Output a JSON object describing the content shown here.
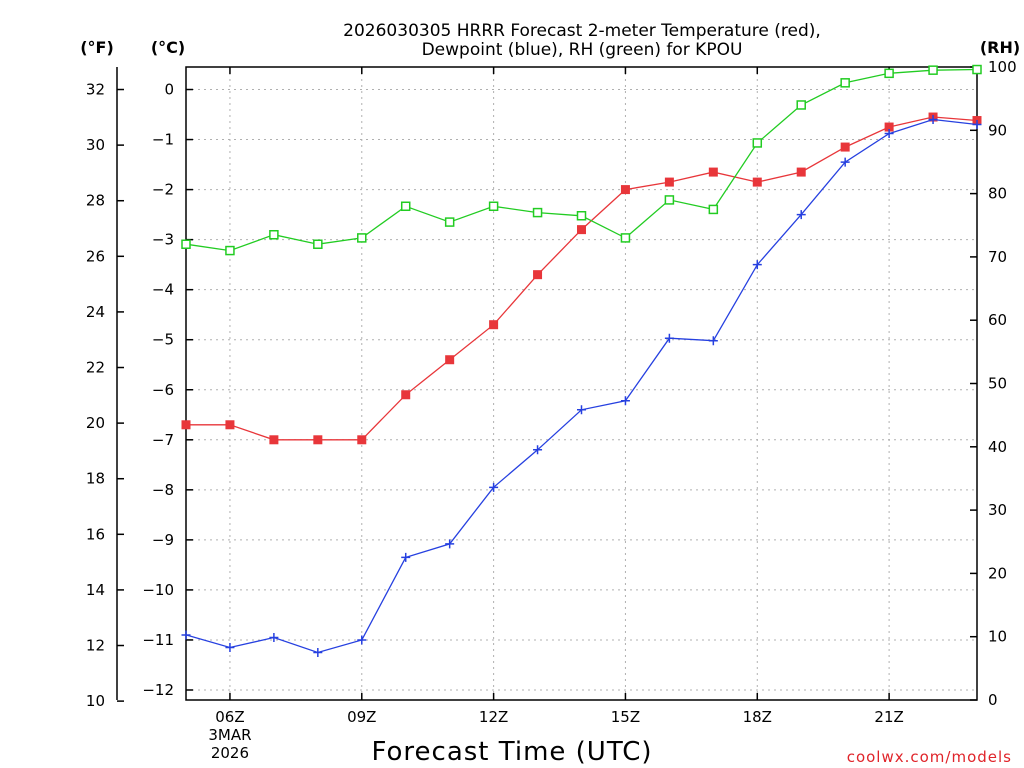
{
  "chart_data": {
    "type": "line",
    "title_lines": [
      "2026030305 HRRR Forecast 2-meter Temperature (red),",
      "Dewpoint (blue), RH (green) for KPOU"
    ],
    "xlabel": "Forecast Time (UTC)",
    "credit": "coolwx.com/models",
    "units": {
      "left_outer": "(°F)",
      "left_inner": "(°C)",
      "right": "(RH)"
    },
    "x_range": [
      5,
      23
    ],
    "x_ticks": [
      {
        "hour": 6,
        "label": "06Z",
        "sub": [
          "3MAR",
          "2026"
        ]
      },
      {
        "hour": 9,
        "label": "09Z",
        "sub": []
      },
      {
        "hour": 12,
        "label": "12Z",
        "sub": []
      },
      {
        "hour": 15,
        "label": "15Z",
        "sub": []
      },
      {
        "hour": 18,
        "label": "18Z",
        "sub": []
      },
      {
        "hour": 21,
        "label": "21Z",
        "sub": []
      }
    ],
    "y_celsius": {
      "range": [
        -12.2,
        0.45
      ],
      "ticks": [
        0,
        -1,
        -2,
        -3,
        -4,
        -5,
        -6,
        -7,
        -8,
        -9,
        -10,
        -11,
        -12
      ]
    },
    "y_fahrenheit": {
      "ticks": [
        32,
        30,
        28,
        26,
        24,
        22,
        20,
        18,
        16,
        14,
        12,
        10
      ]
    },
    "y_rh": {
      "range": [
        0,
        100
      ],
      "ticks": [
        100,
        90,
        80,
        70,
        60,
        50,
        40,
        30,
        20,
        10,
        0
      ]
    },
    "x": [
      5,
      6,
      7,
      8,
      9,
      10,
      11,
      12,
      13,
      14,
      15,
      16,
      17,
      18,
      19,
      20,
      21,
      22,
      23
    ],
    "series": [
      {
        "name": "Temperature",
        "axis": "celsius",
        "color": "#e8363a",
        "marker": "filled-square",
        "values": [
          -6.7,
          -6.7,
          -7.0,
          -7.0,
          -7.0,
          -6.1,
          -5.4,
          -4.7,
          -3.7,
          -2.8,
          -2.0,
          -1.85,
          -1.65,
          -1.85,
          -1.65,
          -1.15,
          -0.75,
          -0.55,
          -0.62
        ]
      },
      {
        "name": "Dewpoint",
        "axis": "celsius",
        "color": "#2640e0",
        "marker": "plus",
        "values": [
          -10.9,
          -11.15,
          -10.95,
          -11.25,
          -11.0,
          -9.35,
          -9.08,
          -7.95,
          -7.2,
          -6.4,
          -6.22,
          -4.97,
          -5.02,
          -3.5,
          -2.5,
          -1.45,
          -0.88,
          -0.6,
          -0.7
        ]
      },
      {
        "name": "RH",
        "axis": "rh",
        "color": "#22cc22",
        "marker": "open-square",
        "values": [
          72,
          71,
          73.5,
          72,
          73,
          78,
          75.5,
          78,
          77,
          76.5,
          73,
          79,
          77.5,
          88,
          94,
          97.5,
          99,
          99.5,
          99.6
        ]
      }
    ]
  }
}
